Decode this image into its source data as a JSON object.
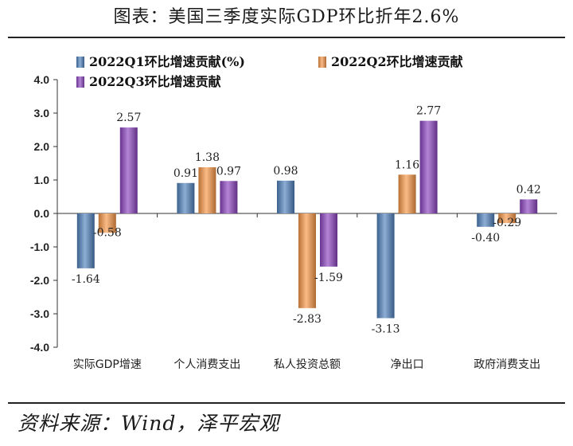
{
  "title": "图表：美国三季度实际GDP环比折年2.6%",
  "source": "资料来源：Wind，泽平宏观",
  "chart_data": {
    "type": "bar",
    "categories": [
      "实际GDP增速",
      "个人消费支出",
      "私人投资总额",
      "净出口",
      "政府消费支出"
    ],
    "series": [
      {
        "name": "2022Q1环比增速贡献(%)",
        "values": [
          -1.64,
          0.91,
          0.98,
          -3.13,
          -0.4
        ],
        "labels": [
          "-1.64",
          "0.91",
          "0.98",
          "-3.13",
          "-0.40"
        ],
        "color": "#4f81bd"
      },
      {
        "name": "2022Q2环比增速贡献",
        "values": [
          -0.58,
          1.38,
          -2.83,
          1.16,
          -0.29
        ],
        "labels": [
          "-0.58",
          "1.38",
          "-2.83",
          "1.16",
          "-0.29"
        ],
        "color": "#f79646"
      },
      {
        "name": "2022Q3环比增速贡献",
        "values": [
          2.57,
          0.97,
          -1.59,
          2.77,
          0.42
        ],
        "labels": [
          "2.57",
          "0.97",
          "-1.59",
          "2.77",
          "0.42"
        ],
        "color": "#8b44c0"
      }
    ],
    "yticks": [
      "4.0",
      "3.0",
      "2.0",
      "1.0",
      "0.0",
      "-1.0",
      "-2.0",
      "-3.0",
      "-4.0"
    ],
    "ylim": [
      -4,
      4
    ],
    "legend_position": "top"
  }
}
